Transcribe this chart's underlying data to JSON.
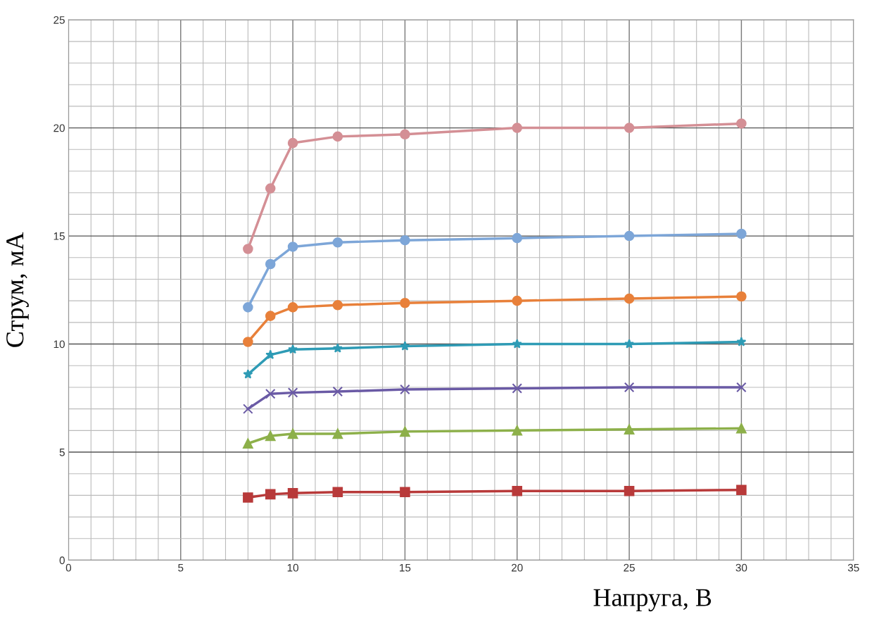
{
  "chart_data": {
    "type": "line",
    "xlabel": "Напруга, В",
    "ylabel": "Струм, мА",
    "xlim": [
      0,
      35
    ],
    "xticks": [
      0,
      5,
      10,
      15,
      20,
      25,
      30,
      35
    ],
    "ylim": [
      0,
      25
    ],
    "yticks": [
      0,
      5,
      10,
      15,
      20,
      25
    ],
    "grid": true,
    "legend": false,
    "x": [
      8,
      9,
      10,
      12,
      15,
      20,
      25,
      30
    ],
    "series": [
      {
        "color": "#d48f95",
        "marker": "circle",
        "values": [
          14.4,
          17.2,
          19.3,
          19.6,
          19.7,
          20.0,
          20.0,
          20.2
        ]
      },
      {
        "color": "#7da6d8",
        "marker": "circle",
        "values": [
          11.7,
          13.7,
          14.5,
          14.7,
          14.8,
          14.9,
          15.0,
          15.1
        ]
      },
      {
        "color": "#e8803a",
        "marker": "circle",
        "values": [
          10.1,
          11.3,
          11.7,
          11.8,
          11.9,
          12.0,
          12.1,
          12.2
        ]
      },
      {
        "color": "#2e9bb5",
        "marker": "star",
        "values": [
          8.6,
          9.5,
          9.75,
          9.8,
          9.9,
          10.0,
          10.0,
          10.1
        ]
      },
      {
        "color": "#6a5aa5",
        "marker": "cross",
        "values": [
          7.0,
          7.7,
          7.75,
          7.8,
          7.9,
          7.95,
          8.0,
          8.0
        ]
      },
      {
        "color": "#8db04a",
        "marker": "triangle",
        "values": [
          5.4,
          5.75,
          5.85,
          5.85,
          5.95,
          6.0,
          6.05,
          6.1
        ]
      },
      {
        "color": "#b83a3a",
        "marker": "square",
        "values": [
          2.9,
          3.05,
          3.1,
          3.15,
          3.15,
          3.2,
          3.2,
          3.25
        ]
      }
    ]
  }
}
